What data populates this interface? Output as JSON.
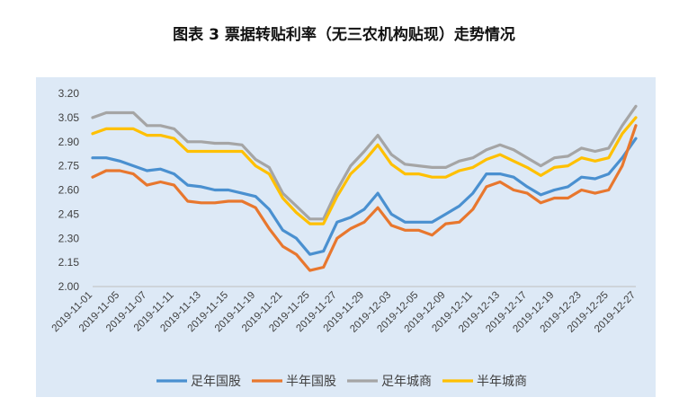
{
  "title": "图表 3  票据转贴利率（无三农机构贴现）走势情况",
  "colors": {
    "panel_bg": "#dde9f6",
    "series": [
      "#4a90d0",
      "#e8772e",
      "#a5a5a5",
      "#ffc000"
    ]
  },
  "chart_data": {
    "type": "line",
    "title": "图表 3  票据转贴利率（无三农机构贴现）走势情况",
    "xlabel": "",
    "ylabel": "",
    "ylim": [
      2.0,
      3.2
    ],
    "yticks": [
      "3.20",
      "3.05",
      "2.90",
      "2.75",
      "2.60",
      "2.45",
      "2.30",
      "2.15",
      "2.00"
    ],
    "grid": false,
    "legend_position": "bottom",
    "x_tick_labels": [
      "2019-11-01",
      "2019-11-05",
      "2019-11-07",
      "2019-11-11",
      "2019-11-13",
      "2019-11-15",
      "2019-11-19",
      "2019-11-21",
      "2019-11-25",
      "2019-11-27",
      "2019-11-29",
      "2019-12-03",
      "2019-12-05",
      "2019-12-09",
      "2019-12-11",
      "2019-12-13",
      "2019-12-17",
      "2019-12-19",
      "2019-12-23",
      "2019-12-25",
      "2019-12-27"
    ],
    "series": [
      {
        "name": "足年国股",
        "values": [
          2.8,
          2.8,
          2.78,
          2.75,
          2.72,
          2.73,
          2.7,
          2.63,
          2.62,
          2.6,
          2.6,
          2.58,
          2.56,
          2.48,
          2.35,
          2.3,
          2.2,
          2.22,
          2.4,
          2.43,
          2.48,
          2.58,
          2.45,
          2.4,
          2.4,
          2.4,
          2.45,
          2.5,
          2.58,
          2.7,
          2.7,
          2.68,
          2.62,
          2.57,
          2.6,
          2.62,
          2.68,
          2.67,
          2.7,
          2.8,
          2.92
        ]
      },
      {
        "name": "半年国股",
        "values": [
          2.68,
          2.72,
          2.72,
          2.7,
          2.63,
          2.65,
          2.63,
          2.53,
          2.52,
          2.52,
          2.53,
          2.53,
          2.49,
          2.36,
          2.25,
          2.2,
          2.1,
          2.12,
          2.3,
          2.36,
          2.4,
          2.49,
          2.38,
          2.35,
          2.35,
          2.32,
          2.39,
          2.4,
          2.48,
          2.62,
          2.65,
          2.6,
          2.58,
          2.52,
          2.55,
          2.55,
          2.6,
          2.58,
          2.6,
          2.75,
          3.0
        ]
      },
      {
        "name": "足年城商",
        "values": [
          3.05,
          3.08,
          3.08,
          3.08,
          3.0,
          3.0,
          2.98,
          2.9,
          2.9,
          2.89,
          2.89,
          2.88,
          2.79,
          2.74,
          2.58,
          2.5,
          2.42,
          2.42,
          2.6,
          2.75,
          2.84,
          2.94,
          2.82,
          2.76,
          2.75,
          2.74,
          2.74,
          2.78,
          2.8,
          2.85,
          2.88,
          2.85,
          2.8,
          2.75,
          2.8,
          2.81,
          2.86,
          2.84,
          2.86,
          3.0,
          3.12
        ]
      },
      {
        "name": "半年城商",
        "values": [
          2.95,
          2.98,
          2.98,
          2.98,
          2.94,
          2.94,
          2.92,
          2.84,
          2.84,
          2.84,
          2.84,
          2.84,
          2.75,
          2.7,
          2.55,
          2.46,
          2.39,
          2.39,
          2.56,
          2.7,
          2.78,
          2.88,
          2.76,
          2.7,
          2.7,
          2.68,
          2.68,
          2.72,
          2.74,
          2.79,
          2.82,
          2.78,
          2.74,
          2.69,
          2.74,
          2.75,
          2.8,
          2.78,
          2.8,
          2.95,
          3.05
        ]
      }
    ]
  }
}
